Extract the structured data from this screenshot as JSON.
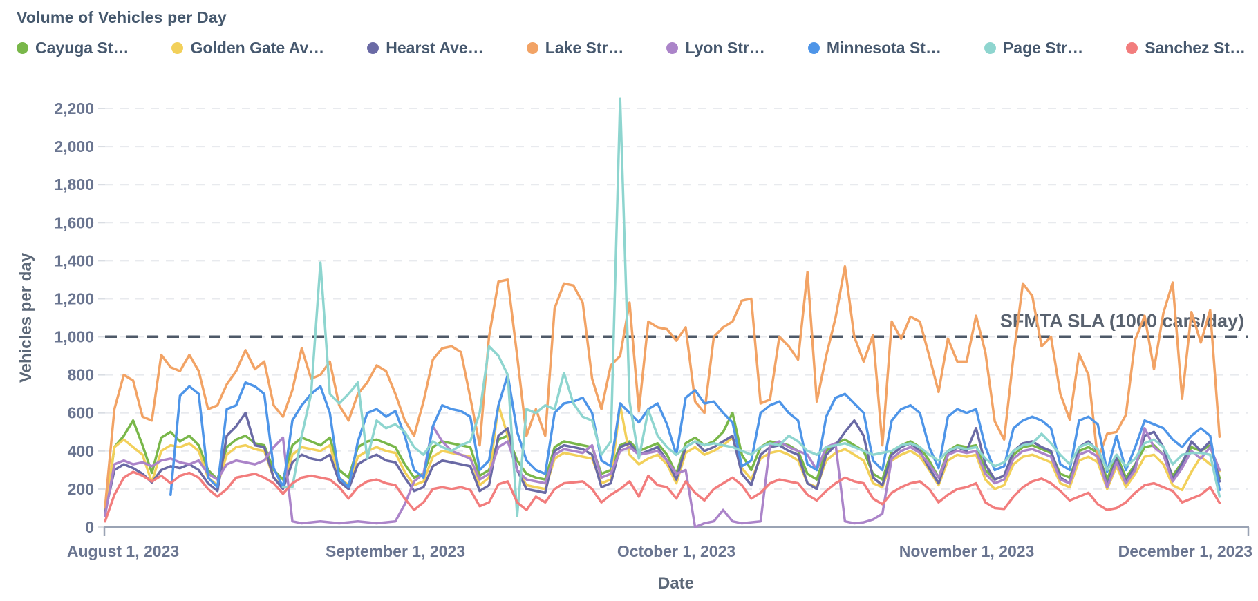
{
  "header": {
    "title": "Volume of Vehicles per Day"
  },
  "chart_data": {
    "type": "line",
    "title": "Volume of Vehicles per Day",
    "xlabel": "Date",
    "ylabel": "Vehicles per day",
    "ylim": [
      0,
      2200
    ],
    "y_tick_step": 200,
    "y_ticks": [
      "0",
      "200",
      "400",
      "600",
      "800",
      "1,000",
      "1,200",
      "1,400",
      "1,600",
      "1,800",
      "2,000",
      "2,200"
    ],
    "x_ticks": [
      {
        "day": 0,
        "label": "August 1, 2023"
      },
      {
        "day": 31,
        "label": "September 1, 2023"
      },
      {
        "day": 61,
        "label": "October 1, 2023"
      },
      {
        "day": 92,
        "label": "November 1, 2023"
      },
      {
        "day": 122,
        "label": "December 1, 2023"
      }
    ],
    "x_domain_days": 122,
    "grid": "horizontal-dashed",
    "legend_position": "top",
    "annotation": {
      "label": "SFMTA SLA (1000 cars/day)",
      "y": 1000,
      "line_style": "dashed",
      "color": "#4e5968"
    },
    "series": [
      {
        "label": "Cayuga St…",
        "color": "#79b74a",
        "values": [
          70,
          420,
          480,
          560,
          430,
          285,
          470,
          500,
          450,
          480,
          430,
          300,
          250,
          420,
          460,
          480,
          440,
          430,
          300,
          250,
          430,
          470,
          450,
          430,
          470,
          300,
          260,
          420,
          450,
          460,
          440,
          420,
          330,
          260,
          280,
          420,
          450,
          440,
          430,
          420,
          270,
          300,
          460,
          480,
          350,
          280,
          260,
          250,
          420,
          450,
          440,
          430,
          420,
          280,
          300,
          430,
          450,
          400,
          420,
          440,
          380,
          280,
          440,
          470,
          430,
          450,
          500,
          600,
          380,
          300,
          420,
          450,
          440,
          430,
          400,
          280,
          250,
          400,
          440,
          460,
          430,
          400,
          280,
          250,
          400,
          430,
          450,
          420,
          350,
          260,
          400,
          430,
          420,
          430,
          300,
          250,
          270,
          380,
          420,
          430,
          410,
          390,
          280,
          260,
          400,
          420,
          390,
          250,
          380,
          260,
          330,
          420,
          430,
          380,
          270,
          340,
          420,
          400,
          430,
          258
        ]
      },
      {
        "label": "Golden Gate Av…",
        "color": "#f2d05a",
        "values": [
          90,
          420,
          460,
          420,
          380,
          235,
          400,
          430,
          420,
          440,
          400,
          260,
          220,
          380,
          420,
          430,
          410,
          400,
          260,
          210,
          380,
          420,
          410,
          400,
          430,
          260,
          220,
          370,
          400,
          420,
          400,
          390,
          290,
          220,
          240,
          370,
          400,
          390,
          380,
          370,
          220,
          260,
          640,
          480,
          300,
          220,
          210,
          200,
          360,
          390,
          380,
          370,
          360,
          230,
          250,
          640,
          380,
          330,
          360,
          380,
          330,
          230,
          390,
          420,
          380,
          400,
          430,
          470,
          310,
          250,
          360,
          390,
          400,
          380,
          350,
          230,
          210,
          350,
          390,
          410,
          380,
          350,
          230,
          210,
          350,
          380,
          400,
          370,
          300,
          220,
          350,
          380,
          370,
          380,
          250,
          200,
          220,
          330,
          370,
          380,
          360,
          340,
          230,
          210,
          350,
          370,
          340,
          200,
          320,
          210,
          280,
          370,
          380,
          330,
          220,
          195,
          290,
          370,
          330,
          295
        ]
      },
      {
        "label": "Hearst Ave…",
        "color": "#6a6aa5",
        "values": [
          75,
          300,
          330,
          310,
          280,
          235,
          300,
          320,
          310,
          330,
          300,
          230,
          190,
          480,
          530,
          600,
          430,
          420,
          260,
          200,
          340,
          380,
          360,
          350,
          380,
          240,
          200,
          330,
          360,
          380,
          350,
          340,
          260,
          190,
          210,
          320,
          350,
          340,
          330,
          320,
          190,
          220,
          480,
          520,
          300,
          200,
          190,
          180,
          400,
          430,
          420,
          410,
          380,
          210,
          230,
          420,
          440,
          380,
          400,
          420,
          350,
          250,
          420,
          450,
          400,
          420,
          450,
          480,
          280,
          220,
          380,
          420,
          430,
          400,
          380,
          230,
          200,
          380,
          430,
          500,
          560,
          480,
          260,
          220,
          380,
          420,
          440,
          400,
          310,
          230,
          380,
          420,
          400,
          520,
          330,
          250,
          270,
          400,
          440,
          450,
          420,
          400,
          260,
          230,
          420,
          450,
          400,
          220,
          360,
          240,
          320,
          480,
          500,
          420,
          250,
          330,
          450,
          400,
          450,
          240
        ]
      },
      {
        "label": "Lake Str…",
        "color": "#f2a365",
        "values": [
          105,
          620,
          800,
          770,
          580,
          560,
          905,
          840,
          820,
          905,
          820,
          620,
          640,
          750,
          820,
          930,
          830,
          870,
          640,
          580,
          720,
          940,
          780,
          800,
          870,
          640,
          560,
          700,
          760,
          850,
          820,
          700,
          560,
          480,
          660,
          880,
          940,
          950,
          920,
          680,
          430,
          1000,
          1290,
          1300,
          900,
          480,
          620,
          480,
          1150,
          1280,
          1270,
          1180,
          780,
          620,
          850,
          900,
          1180,
          610,
          1080,
          1050,
          1040,
          980,
          1050,
          660,
          600,
          1000,
          1050,
          1080,
          1190,
          1200,
          650,
          670,
          1000,
          950,
          880,
          1340,
          660,
          900,
          1100,
          1370,
          1000,
          870,
          1010,
          430,
          1080,
          990,
          1105,
          1080,
          900,
          710,
          990,
          870,
          870,
          1110,
          918,
          555,
          460,
          900,
          1280,
          1215,
          950,
          1000,
          700,
          565,
          910,
          800,
          355,
          490,
          500,
          590,
          985,
          1110,
          830,
          1125,
          1285,
          675,
          1130,
          970,
          1140,
          475
        ]
      },
      {
        "label": "Lyon Str…",
        "color": "#ab84c9",
        "values": [
          60,
          330,
          350,
          330,
          340,
          320,
          350,
          360,
          340,
          330,
          350,
          280,
          250,
          330,
          350,
          340,
          330,
          350,
          420,
          470,
          30,
          20,
          25,
          30,
          25,
          20,
          25,
          30,
          25,
          20,
          25,
          30,
          120,
          240,
          280,
          530,
          450,
          400,
          380,
          360,
          250,
          280,
          420,
          450,
          300,
          250,
          240,
          230,
          380,
          410,
          400,
          390,
          430,
          260,
          280,
          400,
          420,
          380,
          390,
          400,
          350,
          280,
          300,
          0,
          20,
          30,
          90,
          30,
          20,
          25,
          30,
          430,
          450,
          420,
          400,
          380,
          300,
          420,
          440,
          30,
          20,
          25,
          40,
          70,
          360,
          400,
          420,
          390,
          330,
          260,
          380,
          400,
          390,
          400,
          280,
          230,
          250,
          360,
          400,
          410,
          390,
          370,
          250,
          230,
          380,
          400,
          370,
          210,
          340,
          230,
          300,
          520,
          420,
          380,
          240,
          310,
          400,
          360,
          420,
          300
        ]
      },
      {
        "label": "Minnesota St…",
        "color": "#4e95e8",
        "values": [
          null,
          null,
          null,
          null,
          null,
          null,
          null,
          170,
          690,
          740,
          700,
          260,
          210,
          620,
          640,
          760,
          740,
          700,
          310,
          210,
          560,
          640,
          700,
          740,
          600,
          260,
          210,
          450,
          600,
          620,
          580,
          610,
          480,
          300,
          260,
          530,
          640,
          620,
          610,
          580,
          300,
          350,
          640,
          800,
          500,
          350,
          300,
          280,
          600,
          650,
          660,
          680,
          600,
          350,
          320,
          650,
          600,
          550,
          620,
          650,
          540,
          380,
          680,
          720,
          650,
          660,
          600,
          550,
          320,
          350,
          600,
          640,
          660,
          600,
          560,
          330,
          300,
          580,
          680,
          700,
          650,
          600,
          350,
          300,
          560,
          620,
          640,
          600,
          420,
          310,
          580,
          620,
          600,
          620,
          420,
          300,
          320,
          520,
          560,
          580,
          560,
          520,
          330,
          300,
          560,
          580,
          540,
          290,
          480,
          300,
          420,
          560,
          540,
          520,
          460,
          420,
          480,
          520,
          480,
          195
        ]
      },
      {
        "label": "Page Str…",
        "color": "#8ed5cf",
        "values": [
          null,
          null,
          null,
          null,
          null,
          null,
          null,
          null,
          null,
          null,
          null,
          null,
          null,
          null,
          null,
          null,
          null,
          null,
          null,
          210,
          210,
          480,
          700,
          1390,
          700,
          650,
          700,
          760,
          360,
          560,
          520,
          540,
          500,
          420,
          380,
          450,
          420,
          400,
          430,
          450,
          600,
          950,
          900,
          800,
          60,
          620,
          600,
          640,
          620,
          810,
          650,
          580,
          560,
          380,
          450,
          2250,
          660,
          360,
          615,
          480,
          420,
          380,
          420,
          450,
          430,
          440,
          430,
          420,
          400,
          380,
          420,
          440,
          430,
          480,
          450,
          400,
          380,
          420,
          430,
          440,
          420,
          400,
          380,
          390,
          400,
          430,
          440,
          420,
          380,
          350,
          400,
          420,
          410,
          420,
          360,
          320,
          340,
          400,
          430,
          440,
          490,
          440,
          380,
          330,
          420,
          440,
          410,
          300,
          380,
          320,
          360,
          440,
          460,
          420,
          330,
          380,
          390,
          390,
          380,
          160
        ]
      },
      {
        "label": "Sanchez St…",
        "color": "#f27d7d",
        "values": [
          30,
          170,
          260,
          290,
          270,
          240,
          270,
          230,
          270,
          285,
          260,
          200,
          160,
          200,
          260,
          270,
          280,
          260,
          230,
          175,
          230,
          260,
          270,
          260,
          250,
          210,
          150,
          210,
          240,
          250,
          230,
          220,
          150,
          90,
          130,
          200,
          210,
          200,
          210,
          195,
          110,
          130,
          225,
          240,
          130,
          90,
          160,
          130,
          200,
          230,
          235,
          240,
          200,
          130,
          170,
          200,
          240,
          160,
          270,
          220,
          210,
          150,
          240,
          180,
          140,
          200,
          230,
          260,
          220,
          150,
          180,
          230,
          250,
          240,
          230,
          170,
          140,
          190,
          230,
          260,
          240,
          230,
          150,
          120,
          180,
          210,
          230,
          240,
          200,
          130,
          170,
          200,
          210,
          230,
          130,
          100,
          95,
          160,
          210,
          240,
          255,
          230,
          190,
          140,
          160,
          180,
          120,
          90,
          100,
          130,
          180,
          220,
          230,
          210,
          190,
          130,
          150,
          170,
          210,
          127
        ]
      }
    ]
  },
  "colors": {
    "title_text": "#45586d",
    "axis_text": "#6a7590",
    "axis_title_text": "#5c6878",
    "axis_line": "#9aa3b4",
    "grid_line": "#e8eaee",
    "tick_mark": "#d9dde3",
    "sla_line": "#4e5968"
  }
}
